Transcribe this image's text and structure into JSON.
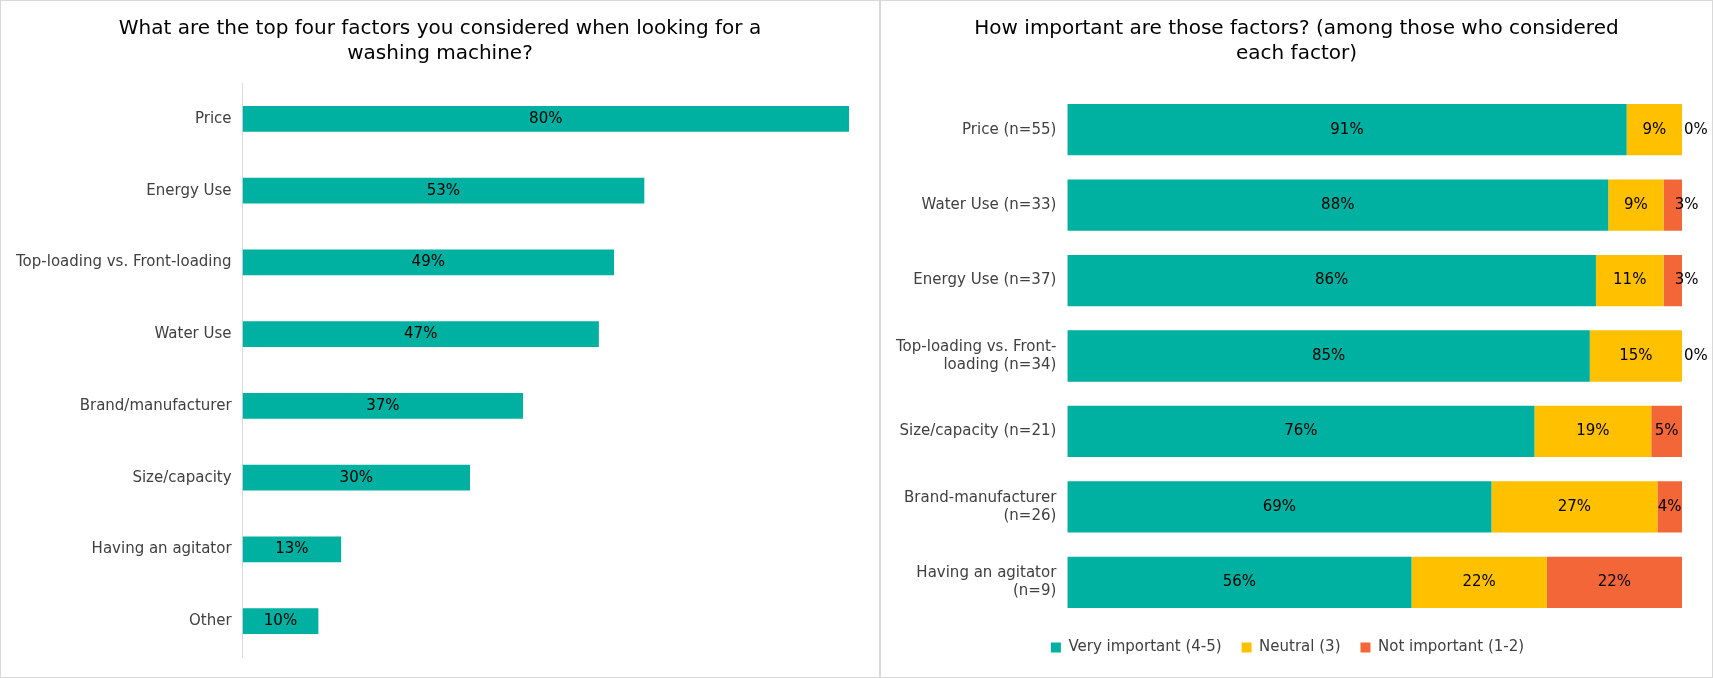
{
  "chart_data": [
    {
      "type": "bar",
      "orientation": "horizontal",
      "title": "What are the top four factors you considered when looking for a washing machine?",
      "categories": [
        "Price",
        "Energy Use",
        "Top-loading vs. Front-loading",
        "Water Use",
        "Brand/manufacturer",
        "Size/capacity",
        "Having an agitator",
        "Other"
      ],
      "values": [
        80,
        53,
        49,
        47,
        37,
        30,
        13,
        10
      ],
      "value_labels": [
        "80%",
        "53%",
        "49%",
        "47%",
        "37%",
        "30%",
        "13%",
        "10%"
      ],
      "color": "#00b0a0",
      "tick_labels": "y",
      "grid": false,
      "legend": false
    },
    {
      "type": "bar",
      "orientation": "horizontal",
      "stacked": true,
      "title": "How important are those factors? (among those who considered each factor)",
      "categories": [
        "Price (n=55)",
        "Water Use (n=33)",
        "Energy Use (n=37)",
        "Top-loading vs. Front-loading (n=34)",
        "Size/capacity (n=21)",
        "Brand-manufacturer (n=26)",
        "Having an agitator (n=9)"
      ],
      "series": [
        {
          "name": "Very important (4-5)",
          "color": "#00b0a0",
          "values": [
            91,
            88,
            86,
            85,
            76,
            69,
            56
          ],
          "value_labels": [
            "91%",
            "88%",
            "86%",
            "85%",
            "76%",
            "69%",
            "56%"
          ]
        },
        {
          "name": "Neutral (3)",
          "color": "#ffc000",
          "values": [
            9,
            9,
            11,
            15,
            19,
            27,
            22
          ],
          "value_labels": [
            "9%",
            "9%",
            "11%",
            "15%",
            "19%",
            "27%",
            "22%"
          ]
        },
        {
          "name": "Not important (1-2)",
          "color": "#f26638",
          "values": [
            0,
            3,
            3,
            0,
            5,
            4,
            22
          ],
          "value_labels": [
            "0%",
            "3%",
            "3%",
            "0%",
            "5%",
            "4%",
            "22%"
          ]
        }
      ],
      "tick_labels": "y",
      "grid": false,
      "legend": "bottom"
    }
  ]
}
